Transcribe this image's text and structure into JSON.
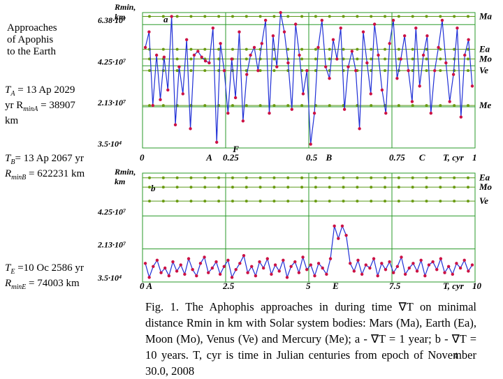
{
  "side_text": {
    "title_lines": [
      "Approaches",
      "of  Apophis",
      "to the Earth"
    ],
    "a_line1": "T",
    "a_line1_sub": "A",
    "a_line1_rest": " = 13 Ap 2029",
    "a_line2": "yr R",
    "a_line2_sub": "minA",
    "a_line2_rest": " = 38907",
    "a_line3": "km",
    "b_line1": "T",
    "b_line1_sub": "B",
    "b_line1_rest": "= 13 Ap 2067 yr",
    "b_line2": "R",
    "b_line2_sub": "minB",
    "b_line2_rest": " = 622231 km",
    "e_line1": "T",
    "e_line1_sub": "E",
    "e_line1_rest": " =10 Oc 2586 yr",
    "e_line2": "R",
    "e_line2_sub": "minE",
    "e_line2_rest": " = 74003 km"
  },
  "caption": {
    "text": "Fig. 1. The Aphophis approaches in during time ∇T on minimal distance Rmin in km with Solar system bodies: Mars (Ma), Earth (Ea), Moon (Mo), Venus (Ve) and Mercury (Me); a - ∇T = 1 year; b - ∇T = 10 years. T, cyr is time in Julian centuries from epoch of November 30.0, 2008",
    "page_number": "4"
  },
  "chart_data": [
    {
      "type": "line",
      "panel_label": "a",
      "ylabel_top": "Rmin,",
      "ylabel_bottom": "km",
      "xlabel": "T, cyr",
      "xlim": [
        0,
        1
      ],
      "ylim": [
        35000,
        70000000
      ],
      "y_tick_labels": [
        "6.38·10⁷",
        "4.25·10⁷",
        "2.13·10⁷",
        "3.5·10⁴"
      ],
      "y_ticks": [
        63800000,
        42500000,
        21300000,
        35000
      ],
      "x_tick_labels": [
        "0",
        "0.25",
        "0.5",
        "0.75",
        "1"
      ],
      "x_ticks": [
        0,
        0.25,
        0.5,
        0.75,
        1
      ],
      "markers": [
        {
          "label": "A",
          "x": 0.2
        },
        {
          "label": "F",
          "x": 0.28
        },
        {
          "label": "B",
          "x": 0.56
        },
        {
          "label": "C",
          "x": 0.84
        }
      ],
      "bodies": [
        {
          "name": "Ma",
          "y": 68000000
        },
        {
          "name": "Ea",
          "y": 51000000
        },
        {
          "name": "Mo",
          "y": 46000000
        },
        {
          "name": "Ve",
          "y": 40000000
        },
        {
          "name": "Me",
          "y": 22000000
        }
      ],
      "series": [
        {
          "name": "Apophis",
          "color": "#1f2fd6",
          "marker_color": "#cc1144",
          "values": [
            52,
            60,
            22,
            48,
            25,
            47,
            30,
            68,
            12,
            42,
            28,
            56,
            10,
            48,
            50,
            47,
            45,
            44,
            62,
            3,
            54,
            40,
            18,
            46,
            26,
            60,
            14,
            38,
            48,
            52,
            40,
            54,
            66,
            18,
            58,
            42,
            70,
            60,
            44,
            20,
            64,
            48,
            28,
            40,
            2,
            18,
            52,
            66,
            42,
            36,
            56,
            46,
            62,
            20,
            42,
            50,
            40,
            10,
            60,
            44,
            28,
            64,
            48,
            30,
            18,
            54,
            66,
            36,
            46,
            58,
            40,
            24,
            62,
            32,
            48,
            58,
            18,
            40,
            52,
            66,
            44,
            24,
            38,
            62,
            16,
            48,
            56,
            32
          ]
        }
      ],
      "series_scale": "values in units of 10^6 km"
    },
    {
      "type": "line",
      "panel_label": "b",
      "ylabel_top": "Rmin,",
      "ylabel_bottom": "km",
      "xlabel": "T, cyr",
      "xlim": [
        0,
        10
      ],
      "ylim": [
        35000,
        70000000
      ],
      "y_tick_labels": [
        "4.25·10⁷",
        "2.13·10⁷",
        "3.5·10⁴"
      ],
      "y_ticks": [
        42500000,
        21300000,
        35000
      ],
      "x_tick_labels": [
        "0",
        "2.5",
        "5",
        "7.5",
        "10"
      ],
      "x_ticks": [
        0,
        2.5,
        5,
        7.5,
        10
      ],
      "markers": [
        {
          "label": "A",
          "x": 0.2
        },
        {
          "label": "E",
          "x": 5.8
        }
      ],
      "bodies": [
        {
          "name": "Ea",
          "y": 67000000
        },
        {
          "name": "Mo",
          "y": 61000000
        },
        {
          "name": "Ve",
          "y": 52000000
        }
      ],
      "series": [
        {
          "name": "Apophis",
          "color": "#1f2fd6",
          "marker_color": "#cc1144",
          "values": [
            12,
            3,
            10,
            14,
            6,
            9,
            4,
            13,
            7,
            11,
            5,
            15,
            8,
            4,
            12,
            16,
            6,
            9,
            13,
            5,
            10,
            14,
            3,
            8,
            12,
            17,
            6,
            10,
            4,
            13,
            9,
            15,
            5,
            11,
            7,
            14,
            3,
            10,
            13,
            6,
            16,
            8,
            11,
            4,
            12,
            9,
            5,
            15,
            36,
            28,
            36,
            30,
            12,
            7,
            14,
            5,
            11,
            9,
            15,
            4,
            12,
            8,
            13,
            6,
            10,
            16,
            5,
            9,
            12,
            7,
            14,
            4,
            11,
            13,
            8,
            15,
            6,
            10,
            5,
            12,
            9,
            14,
            7,
            11
          ]
        }
      ],
      "series_scale": "values in units of 10^6 km"
    }
  ]
}
